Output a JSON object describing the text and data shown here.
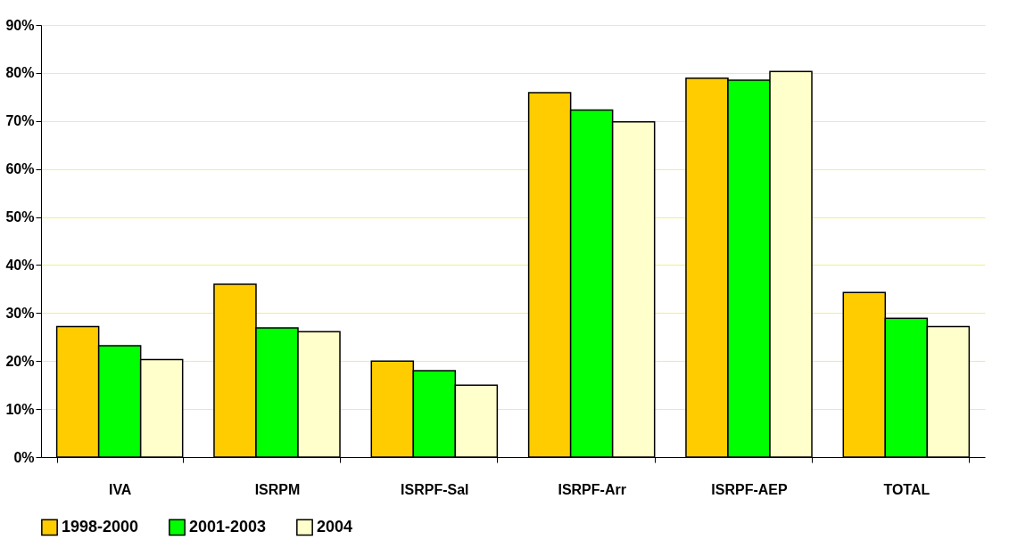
{
  "chart_data": {
    "type": "bar",
    "categories": [
      "IVA",
      "ISRPM",
      "ISRPF-Sal",
      "ISRPF-Arr",
      "ISRPF-AEP",
      "TOTAL"
    ],
    "series": [
      {
        "name": "1998-2000",
        "color": "#ffcc00",
        "values": [
          27.2,
          36,
          20,
          75.9,
          78.9,
          34.3
        ]
      },
      {
        "name": "2001-2003",
        "color": "#00ff00",
        "values": [
          23.2,
          26.9,
          18,
          72.3,
          78.5,
          28.9
        ]
      },
      {
        "name": "2004",
        "color": "#ffffcc",
        "values": [
          20.3,
          26.1,
          15,
          69.8,
          80.3,
          27.2
        ]
      }
    ],
    "ylim": [
      0,
      90
    ],
    "yticks": [
      {
        "value": 0,
        "label": "0%"
      },
      {
        "value": 10,
        "label": "10%"
      },
      {
        "value": 20,
        "label": "20%"
      },
      {
        "value": 30,
        "label": "30%"
      },
      {
        "value": 40,
        "label": "40%"
      },
      {
        "value": 50,
        "label": "50%"
      },
      {
        "value": 60,
        "label": "60%"
      },
      {
        "value": 70,
        "label": "70%"
      },
      {
        "value": 80,
        "label": "80%"
      },
      {
        "value": 90,
        "label": "90%"
      }
    ],
    "grid": "y",
    "legend": "bottom"
  }
}
